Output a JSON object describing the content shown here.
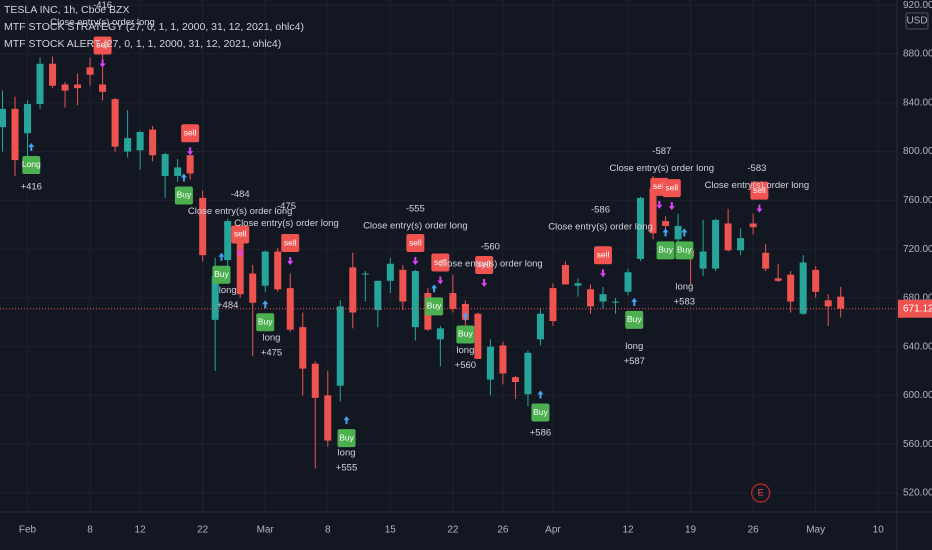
{
  "chart_data": {
    "type": "candlestick",
    "title": "TESLA INC, 1h, Cboe BZX",
    "indicators": [
      "MTF STOCK STRATEGY (27, 0, 1, 1, 2000, 31, 12, 2021, ohlc4)",
      "MTF STOCK ALERT (27, 0, 1, 1, 2000, 31, 12, 2021, ohlc4)"
    ],
    "currency": "USD",
    "up_color": "#26a69a",
    "down_color": "#ef5350",
    "grid": true,
    "xlim": [
      -2.2,
      69.5
    ],
    "ylim": [
      504.4,
      924.3
    ],
    "xticks": [
      {
        "value": 0,
        "label": "Feb"
      },
      {
        "value": 5,
        "label": "8"
      },
      {
        "value": 9,
        "label": "12"
      },
      {
        "value": 14,
        "label": "22"
      },
      {
        "value": 19,
        "label": "Mar"
      },
      {
        "value": 24,
        "label": "8"
      },
      {
        "value": 29,
        "label": "15"
      },
      {
        "value": 34,
        "label": "22"
      },
      {
        "value": 38,
        "label": "26"
      },
      {
        "value": 42,
        "label": "Apr"
      },
      {
        "value": 48,
        "label": "12"
      },
      {
        "value": 53,
        "label": "19"
      },
      {
        "value": 58,
        "label": "26"
      },
      {
        "value": 63,
        "label": "May"
      },
      {
        "value": 68,
        "label": "10"
      }
    ],
    "yticks": [
      {
        "value": 520,
        "label": "520.00"
      },
      {
        "value": 560,
        "label": "560.00"
      },
      {
        "value": 600,
        "label": "600.00"
      },
      {
        "value": 640,
        "label": "640.00"
      },
      {
        "value": 680,
        "label": "680.00"
      },
      {
        "value": 720,
        "label": "720.00"
      },
      {
        "value": 760,
        "label": "760.00"
      },
      {
        "value": 800,
        "label": "800.00"
      },
      {
        "value": 840,
        "label": "840.00"
      },
      {
        "value": 880,
        "label": "880.00"
      },
      {
        "value": 920,
        "label": "920.00"
      }
    ],
    "x": [
      -2,
      -1,
      0,
      1,
      2,
      3,
      4,
      5,
      6,
      7,
      8,
      9,
      10,
      11,
      12,
      13,
      14,
      15,
      16,
      17,
      18,
      19,
      20,
      21,
      22,
      23,
      24,
      25,
      26,
      27,
      28,
      29,
      30,
      31,
      32,
      33,
      34,
      35,
      36,
      37,
      38,
      39,
      40,
      41,
      42,
      43,
      44,
      45,
      46,
      47,
      48,
      49,
      50,
      51,
      52,
      53,
      54,
      55,
      56,
      57,
      58,
      59,
      60,
      61,
      62,
      63,
      64,
      65
    ],
    "open": [
      820,
      835,
      815,
      839,
      872,
      855,
      855,
      869,
      855,
      843,
      800,
      801,
      818,
      780,
      780,
      797,
      762,
      662,
      711,
      727,
      700,
      690,
      718,
      688,
      656,
      626,
      600,
      608,
      705,
      700,
      670,
      694,
      703,
      656,
      684,
      646,
      684,
      675,
      667,
      613,
      641,
      615,
      601,
      646,
      688,
      707,
      690,
      687,
      677,
      677,
      685,
      712,
      770,
      743,
      728,
      719,
      704,
      704,
      741,
      719,
      741,
      717,
      696,
      699,
      667,
      703,
      678,
      681
    ],
    "high": [
      850,
      845,
      842,
      877,
      878,
      857,
      864,
      877,
      880,
      844,
      834,
      817,
      821,
      799,
      794,
      797,
      768,
      713,
      745,
      738,
      707,
      719,
      721,
      700,
      668,
      628,
      620,
      678,
      717,
      702,
      694,
      713,
      707,
      703,
      688,
      657,
      699,
      678,
      668,
      646,
      644,
      616,
      637,
      672,
      692,
      710,
      696,
      691,
      689,
      680,
      704,
      763,
      780,
      747,
      749,
      725,
      744,
      745,
      753,
      737,
      749,
      724,
      708,
      702,
      715,
      706,
      683,
      689
    ],
    "low": [
      800,
      780,
      795,
      835,
      852,
      836,
      838,
      854,
      842,
      800,
      795,
      785,
      792,
      762,
      775,
      777,
      710,
      620,
      695,
      680,
      632,
      685,
      685,
      652,
      600,
      540,
      558,
      595,
      655,
      677,
      656,
      684,
      670,
      645,
      653,
      624,
      668,
      657,
      630,
      600,
      609,
      597,
      591,
      641,
      657,
      691,
      681,
      667,
      671,
      667,
      682,
      710,
      728,
      731,
      724,
      691,
      698,
      702,
      718,
      715,
      732,
      702,
      693,
      668,
      666,
      680,
      657,
      664
    ],
    "close": [
      835,
      793,
      839,
      872,
      854,
      850,
      852,
      863,
      849,
      804,
      811,
      816,
      797,
      798,
      787,
      782,
      715,
      698,
      743,
      683,
      676,
      718,
      687,
      654,
      622,
      598,
      563,
      673,
      668,
      700,
      694,
      708,
      677,
      702,
      654,
      655,
      671,
      662,
      630,
      640,
      618,
      611,
      635,
      667,
      661,
      691,
      692,
      673,
      683,
      677,
      701,
      762,
      733,
      739,
      739,
      714,
      718,
      744,
      719,
      729,
      738,
      704,
      694,
      677,
      709,
      685,
      673,
      671.12
    ],
    "buy_labels": [
      {
        "x": 0.3,
        "price": 789,
        "text": "Long"
      },
      {
        "x": 12.5,
        "price": 764,
        "text": "Buy"
      },
      {
        "x": 15.5,
        "price": 699,
        "text": "Buy"
      },
      {
        "x": 19,
        "price": 660,
        "text": "Buy"
      },
      {
        "x": 25.5,
        "price": 565,
        "text": "Buy"
      },
      {
        "x": 32.5,
        "price": 673,
        "text": "Buy"
      },
      {
        "x": 35,
        "price": 650,
        "text": "Buy"
      },
      {
        "x": 41,
        "price": 586,
        "text": "Buy"
      },
      {
        "x": 48.5,
        "price": 662,
        "text": "Buy"
      },
      {
        "x": 51,
        "price": 719,
        "text": "Buy"
      },
      {
        "x": 52.5,
        "price": 719,
        "text": "Buy"
      }
    ],
    "sell_labels": [
      {
        "x": 6,
        "price": 887,
        "text": "sell"
      },
      {
        "x": 13,
        "price": 815,
        "text": "sell"
      },
      {
        "x": 17,
        "price": 732,
        "text": "sell"
      },
      {
        "x": 21,
        "price": 725,
        "text": "sell"
      },
      {
        "x": 31,
        "price": 725,
        "text": "sell"
      },
      {
        "x": 33,
        "price": 709,
        "text": "sell"
      },
      {
        "x": 36.5,
        "price": 707,
        "text": "sell"
      },
      {
        "x": 46,
        "price": 715,
        "text": "sell"
      },
      {
        "x": 50.5,
        "price": 771,
        "text": "sell"
      },
      {
        "x": 51.5,
        "price": 770,
        "text": "sell"
      },
      {
        "x": 58.5,
        "price": 768,
        "text": "sell"
      }
    ],
    "entry_notes": [
      {
        "x": 0.3,
        "price": 771,
        "lines": [
          "+416"
        ]
      },
      {
        "x": 16,
        "price": 686,
        "lines": [
          "long",
          "+484"
        ]
      },
      {
        "x": 19.5,
        "price": 647,
        "lines": [
          "long",
          "+475"
        ]
      },
      {
        "x": 25.5,
        "price": 553,
        "lines": [
          "long",
          "+555"
        ]
      },
      {
        "x": 35,
        "price": 637,
        "lines": [
          "long",
          "+560"
        ]
      },
      {
        "x": 41,
        "price": 569,
        "lines": [
          "+586"
        ]
      },
      {
        "x": 48.5,
        "price": 640,
        "lines": [
          "long",
          "+587"
        ]
      },
      {
        "x": 52.5,
        "price": 689,
        "lines": [
          "long",
          "+583"
        ]
      }
    ],
    "exit_notes": [
      {
        "x": 6,
        "price": 906,
        "lines": [
          "-416",
          "Close entry(s) order long"
        ]
      },
      {
        "x": 17,
        "price": 751,
        "lines": [
          "-484",
          "Close entry(s) order long"
        ]
      },
      {
        "x": 20.7,
        "price": 741,
        "lines": [
          "-475",
          "Close entry(s) order long"
        ]
      },
      {
        "x": 31,
        "price": 739,
        "lines": [
          "-555",
          "Close entry(s) order long"
        ]
      },
      {
        "x": 37,
        "price": 708,
        "lines": [
          "-560",
          "Close entry(s) order long"
        ]
      },
      {
        "x": 45.8,
        "price": 738,
        "lines": [
          "-586",
          "Close entry(s) order long"
        ]
      },
      {
        "x": 50.7,
        "price": 786,
        "lines": [
          "-587",
          "Close entry(s) order long"
        ]
      },
      {
        "x": 58.3,
        "price": 772,
        "lines": [
          "-583",
          "Close entry(s) order long"
        ]
      }
    ],
    "earnings_marker": {
      "x": 58.6,
      "text": "E"
    }
  }
}
